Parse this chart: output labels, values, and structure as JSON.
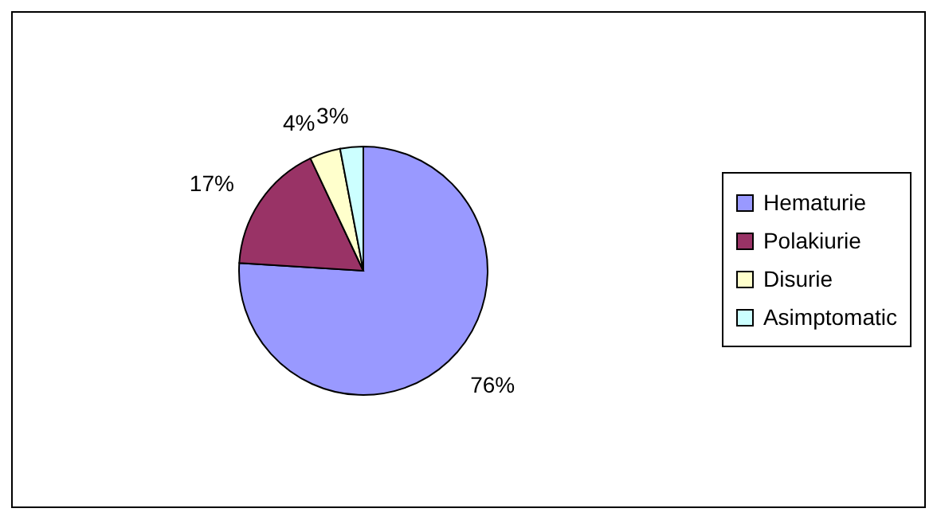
{
  "chart_data": {
    "type": "pie",
    "categories": [
      "Hematurie",
      "Polakiurie",
      "Disurie",
      "Asimptomatic"
    ],
    "values": [
      76,
      17,
      4,
      3
    ],
    "colors": [
      "#9999ff",
      "#993366",
      "#ffffcc",
      "#ccffff"
    ],
    "value_labels": [
      "76%",
      "17%",
      "4%",
      "3%"
    ],
    "legend": "right"
  }
}
